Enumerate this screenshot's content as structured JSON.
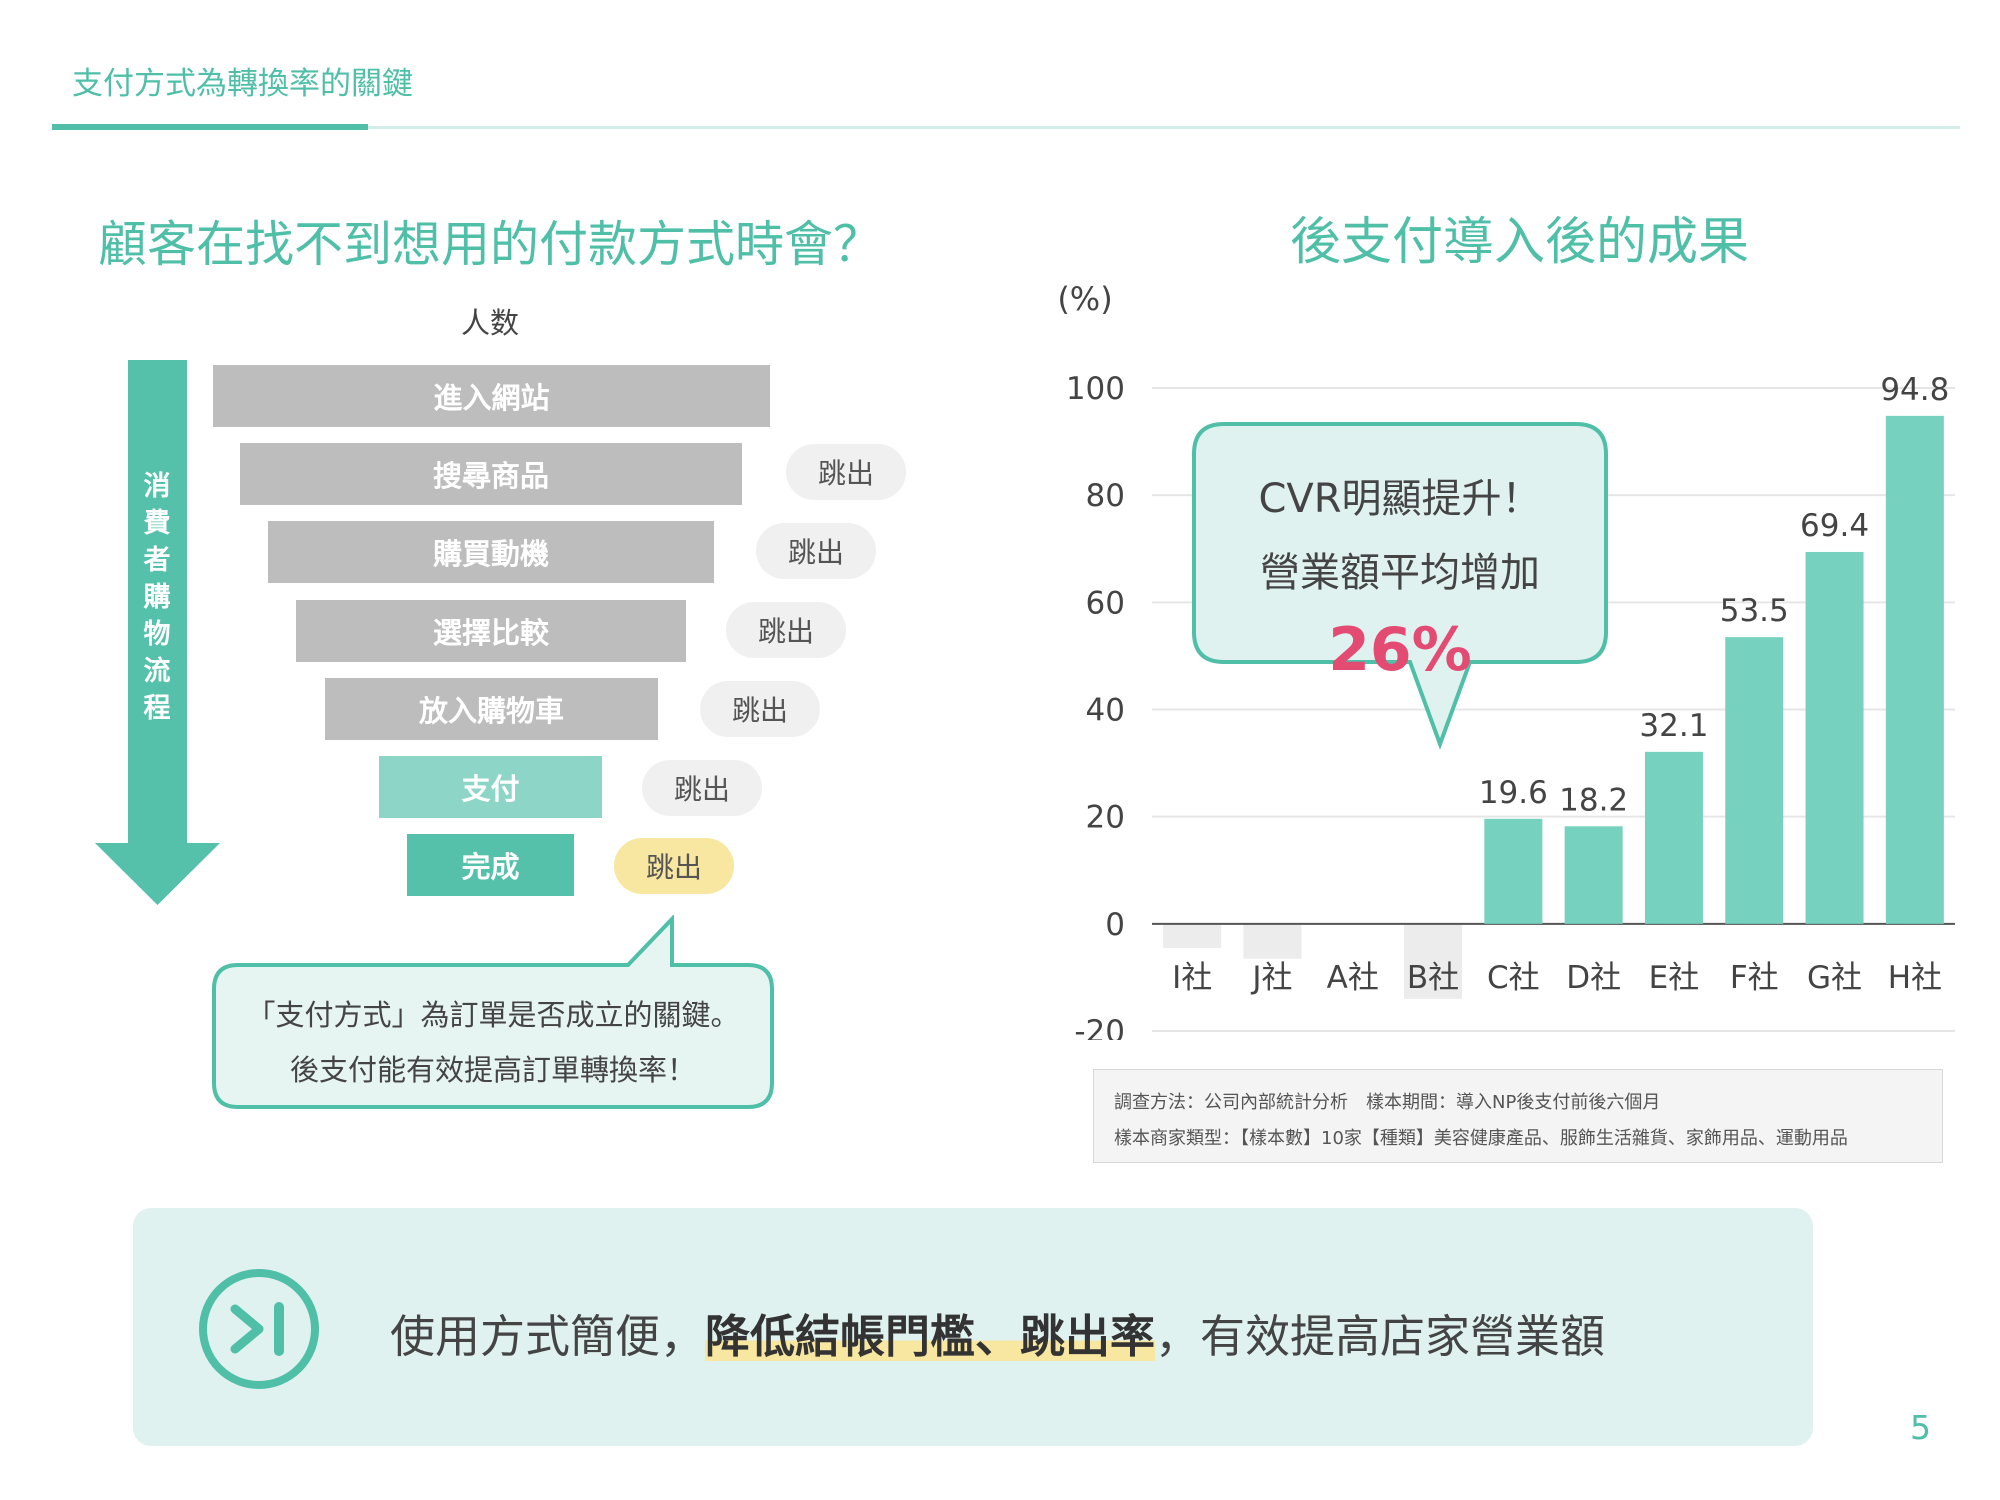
{
  "header": {
    "title": "支付方式為轉換率的關鍵"
  },
  "left": {
    "title": "顧客在找不到想用的付款方式時會？",
    "funnel_header": "人数",
    "arrow_label": "消費者購物流程",
    "stages": [
      "進入網站",
      "搜尋商品",
      "購買動機",
      "選擇比較",
      "放入購物車",
      "支付",
      "完成"
    ],
    "dropoff_label": "跳出",
    "callout": {
      "line1": "「支付方式」為訂單是否成立的關鍵。",
      "line2": "後支付能有效提高訂單轉換率！"
    }
  },
  "right": {
    "title": "後支付導入後的成果",
    "callout": {
      "line1": "CVR明顯提升！",
      "line2": "營業額平均增加",
      "highlight": "26%"
    },
    "note": {
      "line1": "調查方法：公司內部統計分析　樣本期間：導入NP後支付前後六個月",
      "line2": "樣本商家類型：【樣本數】10家【種類】美容健康產品、服飾生活雜貨、家飾用品、運動用品"
    }
  },
  "chart_data": {
    "type": "bar",
    "ylabel": "(%)",
    "ylim": [
      -20,
      100
    ],
    "yticks": [
      100,
      80,
      60,
      40,
      20,
      0,
      -20
    ],
    "grid": true,
    "categories": [
      "I社",
      "J社",
      "A社",
      "B社",
      "C社",
      "D社",
      "E社",
      "F社",
      "G社",
      "H社"
    ],
    "values": [
      -4.5,
      -6.5,
      0,
      -14,
      19.6,
      18.2,
      32.1,
      53.5,
      69.4,
      94.8
    ],
    "labels": [
      "",
      "",
      "",
      "",
      "19.6",
      "18.2",
      "32.1",
      "53.5",
      "69.4",
      "94.8"
    ],
    "colors": {
      "positive": "#76d1bf",
      "negative": "#ececec"
    }
  },
  "bottom": {
    "prefix": "使用方式簡便，",
    "highlight": "降低結帳門檻、跳出率",
    "suffix": "，有效提高店家營業額",
    "icon": "next-icon"
  },
  "page_number": "5",
  "colors": {
    "accent": "#4fbfa8",
    "funnel_gray": "#bdbdbd",
    "funnel_teal_light": "#8dd6c7",
    "funnel_teal": "#55c1aa",
    "highlight_pill": "#f8e7a0",
    "highlight_number": "#e34b72"
  }
}
